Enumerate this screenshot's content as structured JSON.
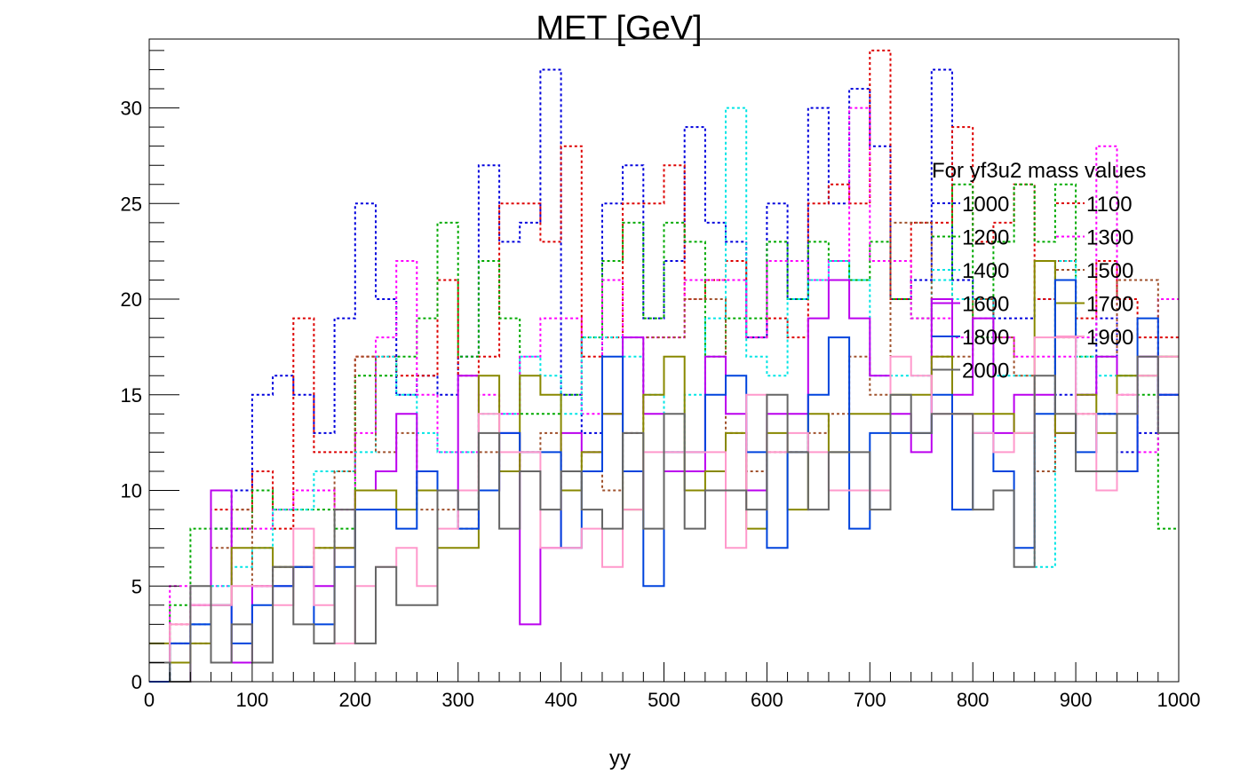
{
  "chart_data": {
    "type": "line",
    "style": "step-histogram",
    "title": "MET [GeV]",
    "xlabel": "yy",
    "ylabel": "",
    "xlim": [
      0,
      1000
    ],
    "ylim": [
      0,
      33.6
    ],
    "x_ticks": [
      0,
      100,
      200,
      300,
      400,
      500,
      600,
      700,
      800,
      900,
      1000
    ],
    "y_ticks": [
      0,
      5,
      10,
      15,
      20,
      25,
      30
    ],
    "bin_edges": [
      0,
      20,
      40,
      60,
      80,
      100,
      120,
      140,
      160,
      180,
      200,
      220,
      240,
      260,
      280,
      300,
      320,
      340,
      360,
      380,
      400,
      420,
      440,
      460,
      480,
      500,
      520,
      540,
      560,
      580,
      600,
      620,
      640,
      660,
      680,
      700,
      720,
      740,
      760,
      780,
      800,
      820,
      840,
      860,
      880,
      900,
      920,
      940,
      960,
      980,
      1000
    ],
    "grid": false,
    "legend": {
      "title": "For yf3u2 mass values",
      "position": "top-right",
      "columns": 2
    },
    "series": [
      {
        "name": "1000",
        "color": "#0000dd",
        "dashed": true,
        "values": [
          0,
          2,
          3,
          8,
          10,
          15,
          16,
          15,
          13,
          19,
          25,
          20,
          15,
          16,
          15,
          17,
          27,
          23,
          24,
          32,
          15,
          13,
          25,
          27,
          19,
          22,
          29,
          24,
          23,
          18,
          25,
          20,
          30,
          25,
          31,
          28,
          20,
          21,
          32,
          21,
          20,
          19,
          19,
          20,
          15,
          15,
          19,
          12,
          13,
          15
        ]
      },
      {
        "name": "1100",
        "color": "#dd0000",
        "dashed": true,
        "values": [
          1,
          3,
          4,
          9,
          9,
          11,
          8,
          19,
          12,
          12,
          17,
          17,
          16,
          16,
          21,
          16,
          17,
          25,
          25,
          23,
          28,
          17,
          18,
          25,
          25,
          27,
          20,
          21,
          22,
          18,
          19,
          18,
          25,
          26,
          25,
          33,
          20,
          24,
          24,
          29,
          23,
          24,
          26,
          20,
          22,
          19,
          22,
          20,
          18,
          18
        ]
      },
      {
        "name": "1200",
        "color": "#00aa00",
        "dashed": true,
        "values": [
          0,
          4,
          8,
          8,
          8,
          10,
          9,
          9,
          9,
          8,
          16,
          16,
          17,
          19,
          24,
          17,
          22,
          19,
          14,
          14,
          15,
          18,
          22,
          24,
          19,
          24,
          23,
          17,
          19,
          19,
          23,
          20,
          23,
          22,
          21,
          23,
          20,
          19,
          20,
          26,
          18,
          23,
          26,
          23,
          26,
          17,
          17,
          16,
          15,
          8
        ]
      },
      {
        "name": "1300",
        "color": "#ff00ff",
        "dashed": true,
        "values": [
          1,
          5,
          4,
          5,
          8,
          8,
          9,
          10,
          10,
          9,
          13,
          18,
          22,
          15,
          12,
          12,
          15,
          14,
          17,
          19,
          19,
          14,
          21,
          18,
          18,
          18,
          21,
          21,
          21,
          18,
          22,
          22,
          21,
          22,
          30,
          22,
          22,
          19,
          19,
          18,
          19,
          18,
          17,
          17,
          17,
          18,
          28,
          15,
          12,
          20
        ]
      },
      {
        "name": "1400",
        "color": "#00e5e5",
        "dashed": true,
        "values": [
          1,
          2,
          3,
          5,
          6,
          7,
          9,
          9,
          11,
          11,
          12,
          17,
          15,
          13,
          12,
          12,
          14,
          14,
          17,
          16,
          14,
          18,
          18,
          17,
          15,
          12,
          15,
          19,
          30,
          17,
          16,
          20,
          21,
          22,
          21,
          16,
          16,
          16,
          21,
          20,
          20,
          16,
          16,
          6,
          22,
          17,
          16,
          16,
          16,
          17
        ]
      },
      {
        "name": "1500",
        "color": "#a0522d",
        "dashed": true,
        "values": [
          1,
          2,
          2,
          7,
          9,
          5,
          6,
          6,
          7,
          11,
          17,
          12,
          13,
          9,
          9,
          8,
          12,
          11,
          12,
          13,
          10,
          12,
          10,
          13,
          18,
          18,
          20,
          20,
          13,
          11,
          12,
          12,
          13,
          14,
          17,
          15,
          24,
          24,
          17,
          17,
          20,
          18,
          16,
          11,
          18,
          14,
          14,
          21,
          21,
          15
        ]
      },
      {
        "name": "1600",
        "color": "#bb00ee",
        "dashed": false,
        "values": [
          0,
          0,
          4,
          10,
          1,
          5,
          5,
          6,
          5,
          7,
          10,
          11,
          14,
          10,
          10,
          16,
          10,
          13,
          3,
          7,
          13,
          12,
          14,
          18,
          14,
          11,
          11,
          17,
          14,
          10,
          14,
          14,
          19,
          21,
          19,
          16,
          14,
          12,
          20,
          15,
          19,
          13,
          15,
          15,
          13,
          15,
          17,
          11,
          17,
          15
        ]
      },
      {
        "name": "1700",
        "color": "#888800",
        "dashed": false,
        "values": [
          2,
          1,
          2,
          4,
          7,
          7,
          6,
          6,
          7,
          7,
          10,
          10,
          9,
          10,
          7,
          7,
          16,
          11,
          16,
          15,
          10,
          12,
          14,
          9,
          15,
          17,
          10,
          11,
          13,
          8,
          13,
          9,
          14,
          12,
          14,
          14,
          15,
          15,
          17,
          14,
          14,
          14,
          13,
          22,
          13,
          15,
          13,
          16,
          16,
          17
        ]
      },
      {
        "name": "1800",
        "color": "#0044dd",
        "dashed": false,
        "values": [
          0,
          2,
          3,
          4,
          2,
          4,
          5,
          6,
          3,
          6,
          9,
          9,
          8,
          11,
          10,
          8,
          10,
          13,
          12,
          12,
          7,
          11,
          17,
          11,
          5,
          12,
          12,
          15,
          16,
          12,
          7,
          12,
          15,
          18,
          8,
          13,
          13,
          13,
          15,
          9,
          13,
          11,
          7,
          14,
          21,
          12,
          14,
          11,
          19,
          15
        ]
      },
      {
        "name": "1900",
        "color": "#ff99cc",
        "dashed": false,
        "values": [
          1,
          3,
          4,
          4,
          5,
          5,
          4,
          8,
          4,
          2,
          5,
          6,
          7,
          5,
          8,
          10,
          14,
          12,
          12,
          7,
          7,
          8,
          6,
          9,
          12,
          12,
          12,
          12,
          7,
          15,
          12,
          13,
          12,
          10,
          10,
          10,
          17,
          16,
          14,
          14,
          13,
          12,
          13,
          18,
          18,
          14,
          10,
          15,
          16,
          17
        ]
      },
      {
        "name": "2000",
        "color": "#666666",
        "dashed": false,
        "values": [
          1,
          0,
          5,
          1,
          3,
          1,
          6,
          3,
          2,
          9,
          2,
          6,
          4,
          4,
          10,
          9,
          13,
          8,
          11,
          9,
          11,
          9,
          8,
          13,
          8,
          14,
          8,
          10,
          10,
          9,
          15,
          12,
          9,
          12,
          12,
          9,
          15,
          13,
          14,
          14,
          9,
          10,
          6,
          16,
          14,
          11,
          11,
          14,
          17,
          13
        ]
      }
    ]
  }
}
